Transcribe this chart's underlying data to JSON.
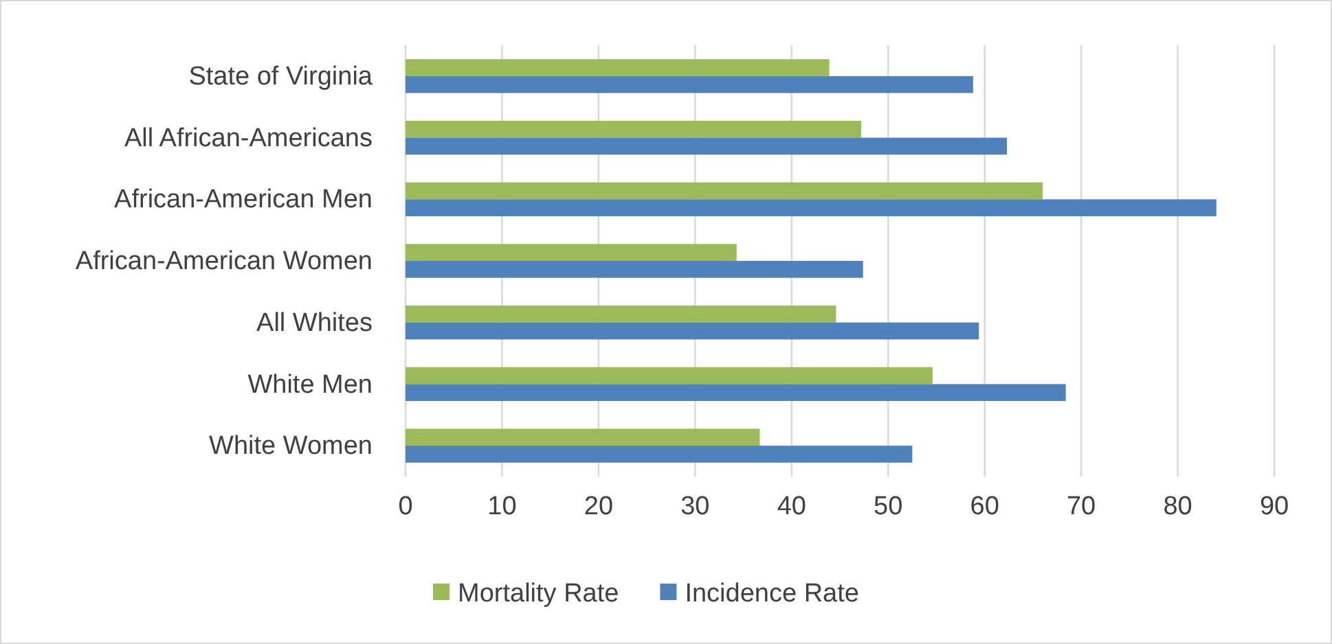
{
  "chart_data": {
    "type": "bar",
    "orientation": "horizontal",
    "categories": [
      "State of Virginia",
      "All African-Americans",
      "African-American Men",
      "African-American Women",
      "All Whites",
      "White Men",
      "White Women"
    ],
    "series": [
      {
        "name": "Mortality Rate",
        "color": "#9bbb59",
        "values": [
          43.9,
          47.2,
          66.0,
          34.3,
          44.6,
          54.6,
          36.7
        ]
      },
      {
        "name": "Incidence Rate",
        "color": "#4f81bd",
        "values": [
          58.8,
          62.3,
          84.0,
          47.4,
          59.4,
          68.4,
          52.5
        ]
      }
    ],
    "xlim": [
      0,
      90
    ],
    "xticks": [
      0,
      10,
      20,
      30,
      40,
      50,
      60,
      70,
      80,
      90
    ],
    "grid": "x",
    "legend": "bottom"
  }
}
